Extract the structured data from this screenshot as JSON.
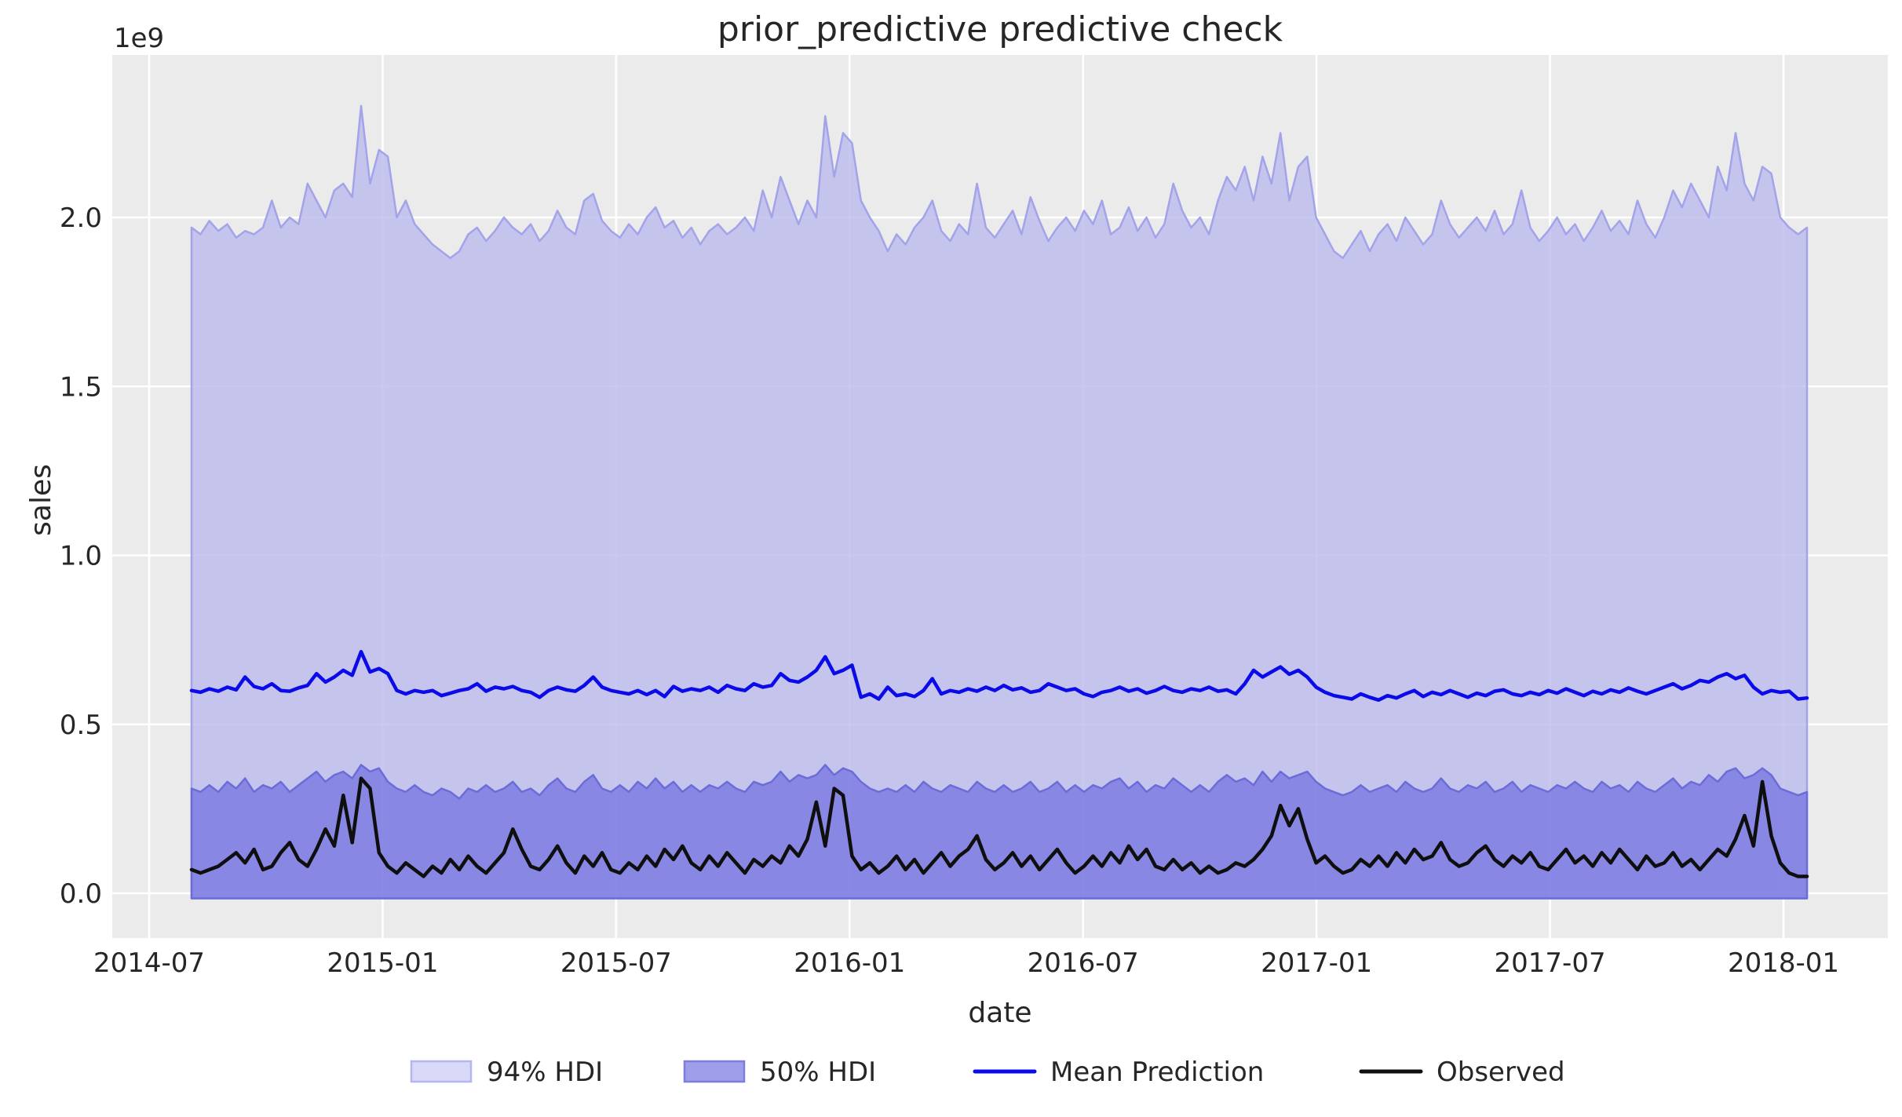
{
  "colors": {
    "figure_bg": "#ffffff",
    "plot_bg": "#ebebeb",
    "grid": "#ffffff",
    "text": "#262626",
    "hdi94_fill": "#b9b9ec",
    "hdi94_fill_opacity": 0.78,
    "hdi94_edge": "#a3a3ea",
    "hdi50_fill": "#5858de",
    "hdi50_fill_opacity": 0.55,
    "hdi50_edge": "#6c6cd9",
    "mean_line": "#0b0bea",
    "observed_line": "#0f0f0f",
    "legend94_fill": "#d8d8f7",
    "legend94_edge": "#b5b5f0",
    "legend50_fill": "#9e9ee9",
    "legend50_edge": "#7d7de0"
  },
  "chart_data": {
    "type": "line",
    "title": "prior_predictive predictive check",
    "xlabel": "date",
    "ylabel": "sales",
    "y_offset_text": "1e9",
    "unit": "1e9",
    "ylim_1e9": [
      -0.13,
      2.48
    ],
    "x_start": "2014-08-03",
    "x_end": "2018-01-21",
    "x_freq": "weekly",
    "grid": true,
    "x_ticks": [
      "2014-07",
      "2015-01",
      "2015-07",
      "2016-01",
      "2016-07",
      "2017-01",
      "2017-07",
      "2018-01"
    ],
    "y_ticks": [
      "0.0",
      "0.5",
      "1.0",
      "1.5",
      "2.0"
    ],
    "legend_position": "lower center",
    "legend": [
      {
        "label": "94% HDI",
        "type": "patch"
      },
      {
        "label": "50% HDI",
        "type": "patch"
      },
      {
        "label": "Mean Prediction",
        "type": "line"
      },
      {
        "label": "Observed",
        "type": "line"
      }
    ],
    "series": [
      {
        "name": "hdi_94_upper",
        "values": [
          1.97,
          1.95,
          1.99,
          1.96,
          1.98,
          1.94,
          1.96,
          1.95,
          1.97,
          2.05,
          1.97,
          2.0,
          1.98,
          2.1,
          2.05,
          2.0,
          2.08,
          2.1,
          2.06,
          2.33,
          2.1,
          2.2,
          2.18,
          2.0,
          2.05,
          1.98,
          1.95,
          1.92,
          1.9,
          1.88,
          1.9,
          1.95,
          1.97,
          1.93,
          1.96,
          2.0,
          1.97,
          1.95,
          1.98,
          1.93,
          1.96,
          2.02,
          1.97,
          1.95,
          2.05,
          2.07,
          1.99,
          1.96,
          1.94,
          1.98,
          1.95,
          2.0,
          2.03,
          1.97,
          1.99,
          1.94,
          1.97,
          1.92,
          1.96,
          1.98,
          1.95,
          1.97,
          2.0,
          1.96,
          2.08,
          2.0,
          2.12,
          2.05,
          1.98,
          2.05,
          2.0,
          2.3,
          2.12,
          2.25,
          2.22,
          2.05,
          2.0,
          1.96,
          1.9,
          1.95,
          1.92,
          1.97,
          2.0,
          2.05,
          1.96,
          1.93,
          1.98,
          1.95,
          2.1,
          1.97,
          1.94,
          1.98,
          2.02,
          1.95,
          2.06,
          1.99,
          1.93,
          1.97,
          2.0,
          1.96,
          2.02,
          1.98,
          2.05,
          1.95,
          1.97,
          2.03,
          1.96,
          2.0,
          1.94,
          1.98,
          2.1,
          2.02,
          1.97,
          2.0,
          1.95,
          2.05,
          2.12,
          2.08,
          2.15,
          2.05,
          2.18,
          2.1,
          2.25,
          2.05,
          2.15,
          2.18,
          2.0,
          1.95,
          1.9,
          1.88,
          1.92,
          1.96,
          1.9,
          1.95,
          1.98,
          1.93,
          2.0,
          1.96,
          1.92,
          1.95,
          2.05,
          1.98,
          1.94,
          1.97,
          2.0,
          1.96,
          2.02,
          1.95,
          1.98,
          2.08,
          1.97,
          1.93,
          1.96,
          2.0,
          1.95,
          1.98,
          1.93,
          1.97,
          2.02,
          1.96,
          1.99,
          1.95,
          2.05,
          1.98,
          1.94,
          2.0,
          2.08,
          2.03,
          2.1,
          2.05,
          2.0,
          2.15,
          2.08,
          2.25,
          2.1,
          2.05,
          2.15,
          2.13,
          2.0,
          1.97,
          1.95,
          1.97
        ]
      },
      {
        "name": "hdi_94_lower",
        "flat": -0.015
      },
      {
        "name": "hdi_50_upper",
        "values": [
          0.31,
          0.3,
          0.32,
          0.3,
          0.33,
          0.31,
          0.34,
          0.3,
          0.32,
          0.31,
          0.33,
          0.3,
          0.32,
          0.34,
          0.36,
          0.33,
          0.35,
          0.36,
          0.34,
          0.38,
          0.36,
          0.37,
          0.33,
          0.31,
          0.3,
          0.32,
          0.3,
          0.29,
          0.31,
          0.3,
          0.28,
          0.31,
          0.3,
          0.32,
          0.3,
          0.31,
          0.33,
          0.3,
          0.31,
          0.29,
          0.32,
          0.34,
          0.31,
          0.3,
          0.33,
          0.35,
          0.31,
          0.3,
          0.32,
          0.3,
          0.33,
          0.31,
          0.34,
          0.31,
          0.33,
          0.3,
          0.32,
          0.3,
          0.32,
          0.31,
          0.33,
          0.31,
          0.3,
          0.33,
          0.32,
          0.33,
          0.36,
          0.33,
          0.35,
          0.34,
          0.35,
          0.38,
          0.35,
          0.37,
          0.36,
          0.33,
          0.31,
          0.3,
          0.31,
          0.3,
          0.32,
          0.3,
          0.33,
          0.31,
          0.3,
          0.32,
          0.31,
          0.3,
          0.33,
          0.31,
          0.3,
          0.32,
          0.3,
          0.31,
          0.33,
          0.3,
          0.31,
          0.33,
          0.3,
          0.32,
          0.3,
          0.32,
          0.31,
          0.33,
          0.34,
          0.31,
          0.33,
          0.3,
          0.32,
          0.31,
          0.34,
          0.32,
          0.3,
          0.32,
          0.3,
          0.33,
          0.35,
          0.33,
          0.34,
          0.32,
          0.36,
          0.33,
          0.36,
          0.34,
          0.35,
          0.36,
          0.33,
          0.31,
          0.3,
          0.29,
          0.3,
          0.32,
          0.3,
          0.31,
          0.32,
          0.3,
          0.33,
          0.31,
          0.3,
          0.31,
          0.34,
          0.31,
          0.3,
          0.32,
          0.31,
          0.33,
          0.3,
          0.31,
          0.33,
          0.3,
          0.32,
          0.31,
          0.3,
          0.32,
          0.31,
          0.33,
          0.31,
          0.3,
          0.33,
          0.31,
          0.32,
          0.3,
          0.33,
          0.31,
          0.3,
          0.32,
          0.34,
          0.31,
          0.33,
          0.32,
          0.35,
          0.33,
          0.36,
          0.37,
          0.34,
          0.35,
          0.37,
          0.35,
          0.31,
          0.3,
          0.29,
          0.3
        ]
      },
      {
        "name": "hdi_50_lower",
        "flat": -0.015
      },
      {
        "name": "mean_prediction",
        "values": [
          0.6,
          0.595,
          0.605,
          0.598,
          0.61,
          0.602,
          0.64,
          0.612,
          0.605,
          0.62,
          0.6,
          0.598,
          0.608,
          0.615,
          0.65,
          0.625,
          0.64,
          0.66,
          0.645,
          0.715,
          0.655,
          0.665,
          0.65,
          0.6,
          0.59,
          0.6,
          0.595,
          0.6,
          0.585,
          0.592,
          0.6,
          0.605,
          0.62,
          0.598,
          0.61,
          0.605,
          0.612,
          0.6,
          0.595,
          0.58,
          0.6,
          0.61,
          0.602,
          0.598,
          0.615,
          0.64,
          0.61,
          0.6,
          0.595,
          0.59,
          0.6,
          0.588,
          0.6,
          0.582,
          0.612,
          0.598,
          0.605,
          0.6,
          0.61,
          0.595,
          0.615,
          0.605,
          0.6,
          0.62,
          0.61,
          0.615,
          0.65,
          0.63,
          0.625,
          0.64,
          0.66,
          0.7,
          0.65,
          0.66,
          0.675,
          0.58,
          0.59,
          0.575,
          0.61,
          0.585,
          0.59,
          0.582,
          0.6,
          0.635,
          0.59,
          0.6,
          0.595,
          0.605,
          0.598,
          0.61,
          0.6,
          0.615,
          0.602,
          0.608,
          0.595,
          0.6,
          0.62,
          0.61,
          0.6,
          0.605,
          0.59,
          0.582,
          0.595,
          0.6,
          0.61,
          0.598,
          0.605,
          0.592,
          0.6,
          0.612,
          0.6,
          0.595,
          0.605,
          0.6,
          0.61,
          0.598,
          0.602,
          0.59,
          0.62,
          0.66,
          0.64,
          0.655,
          0.67,
          0.648,
          0.66,
          0.64,
          0.61,
          0.595,
          0.585,
          0.58,
          0.575,
          0.59,
          0.58,
          0.572,
          0.585,
          0.578,
          0.59,
          0.6,
          0.582,
          0.595,
          0.588,
          0.6,
          0.59,
          0.58,
          0.592,
          0.585,
          0.598,
          0.602,
          0.59,
          0.585,
          0.595,
          0.588,
          0.6,
          0.592,
          0.605,
          0.595,
          0.585,
          0.598,
          0.59,
          0.602,
          0.595,
          0.608,
          0.598,
          0.59,
          0.6,
          0.61,
          0.62,
          0.605,
          0.615,
          0.63,
          0.625,
          0.64,
          0.65,
          0.635,
          0.645,
          0.61,
          0.59,
          0.6,
          0.595,
          0.598,
          0.575,
          0.578
        ]
      },
      {
        "name": "observed",
        "values": [
          0.07,
          0.06,
          0.07,
          0.08,
          0.1,
          0.12,
          0.09,
          0.13,
          0.07,
          0.08,
          0.12,
          0.15,
          0.1,
          0.08,
          0.13,
          0.19,
          0.14,
          0.29,
          0.15,
          0.34,
          0.31,
          0.12,
          0.08,
          0.06,
          0.09,
          0.07,
          0.05,
          0.08,
          0.06,
          0.1,
          0.07,
          0.11,
          0.08,
          0.06,
          0.09,
          0.12,
          0.19,
          0.13,
          0.08,
          0.07,
          0.1,
          0.14,
          0.09,
          0.06,
          0.11,
          0.08,
          0.12,
          0.07,
          0.06,
          0.09,
          0.07,
          0.11,
          0.08,
          0.13,
          0.1,
          0.14,
          0.09,
          0.07,
          0.11,
          0.08,
          0.12,
          0.09,
          0.06,
          0.1,
          0.08,
          0.11,
          0.09,
          0.14,
          0.11,
          0.16,
          0.27,
          0.14,
          0.31,
          0.29,
          0.11,
          0.07,
          0.09,
          0.06,
          0.08,
          0.11,
          0.07,
          0.1,
          0.06,
          0.09,
          0.12,
          0.08,
          0.11,
          0.13,
          0.17,
          0.1,
          0.07,
          0.09,
          0.12,
          0.08,
          0.11,
          0.07,
          0.1,
          0.13,
          0.09,
          0.06,
          0.08,
          0.11,
          0.08,
          0.12,
          0.09,
          0.14,
          0.1,
          0.13,
          0.08,
          0.07,
          0.1,
          0.07,
          0.09,
          0.06,
          0.08,
          0.06,
          0.07,
          0.09,
          0.08,
          0.1,
          0.13,
          0.17,
          0.26,
          0.2,
          0.25,
          0.16,
          0.09,
          0.11,
          0.08,
          0.06,
          0.07,
          0.1,
          0.08,
          0.11,
          0.08,
          0.12,
          0.09,
          0.13,
          0.1,
          0.11,
          0.15,
          0.1,
          0.08,
          0.09,
          0.12,
          0.14,
          0.1,
          0.08,
          0.11,
          0.09,
          0.12,
          0.08,
          0.07,
          0.1,
          0.13,
          0.09,
          0.11,
          0.08,
          0.12,
          0.09,
          0.13,
          0.1,
          0.07,
          0.11,
          0.08,
          0.09,
          0.12,
          0.08,
          0.1,
          0.07,
          0.1,
          0.13,
          0.11,
          0.16,
          0.23,
          0.14,
          0.33,
          0.17,
          0.09,
          0.06,
          0.05,
          0.05
        ]
      }
    ]
  }
}
